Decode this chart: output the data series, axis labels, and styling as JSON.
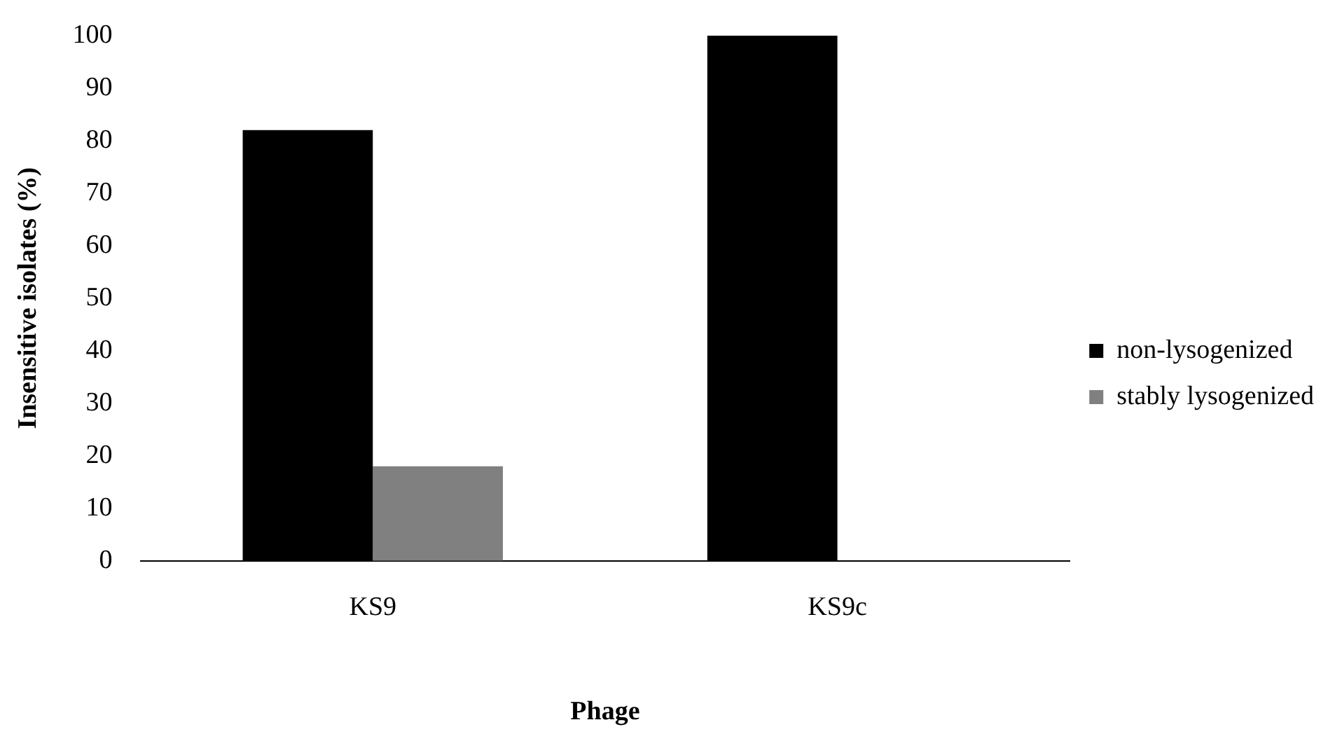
{
  "chart_data": {
    "type": "bar",
    "xlabel": "Phage",
    "ylabel": "Insensitive isolates (%)",
    "categories": [
      "KS9",
      "KS9c"
    ],
    "series": [
      {
        "name": "non-lysogenized",
        "color": "#000000",
        "values": [
          82,
          100
        ]
      },
      {
        "name": "stably lysogenized",
        "color": "#808080",
        "values": [
          18,
          0
        ]
      }
    ],
    "ylim": [
      0,
      100
    ],
    "yticks": [
      0,
      10,
      20,
      30,
      40,
      50,
      60,
      70,
      80,
      90,
      100
    ],
    "grid": false,
    "legend": "right"
  }
}
